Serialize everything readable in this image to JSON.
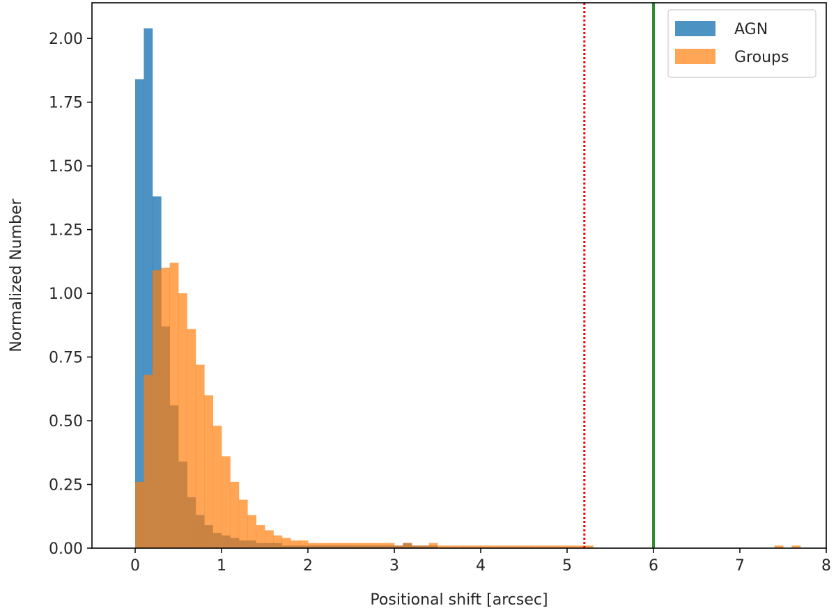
{
  "chart_data": {
    "type": "bar",
    "xlabel": "Positional shift [arcsec]",
    "ylabel": "Normalized Number",
    "xlim": [
      -0.5,
      8
    ],
    "ylim": [
      0,
      2.14
    ],
    "xticks": [
      0,
      1,
      2,
      3,
      4,
      5,
      6,
      7,
      8
    ],
    "xtick_labels": [
      "0",
      "1",
      "2",
      "3",
      "4",
      "5",
      "6",
      "7",
      "8"
    ],
    "yticks": [
      0,
      0.25,
      0.5,
      0.75,
      1.0,
      1.25,
      1.5,
      1.75,
      2.0
    ],
    "ytick_labels": [
      "0.00",
      "0.25",
      "0.50",
      "0.75",
      "1.00",
      "1.25",
      "1.50",
      "1.75",
      "2.00"
    ],
    "grid": false,
    "legend_position": "top-right",
    "series": [
      {
        "name": "AGN",
        "color": "#1f77b4",
        "opacity": 0.8,
        "bin_start": 0.0,
        "bin_width": 0.1,
        "values": [
          1.84,
          2.04,
          1.38,
          0.87,
          0.56,
          0.34,
          0.2,
          0.13,
          0.09,
          0.06,
          0.05,
          0.04,
          0.03,
          0.03,
          0.02,
          0.02,
          0.02,
          0.01,
          0.01,
          0.01,
          0.01,
          0.01,
          0.01,
          0.01,
          0.01,
          0.01,
          0.01,
          0.01,
          0.01,
          0.01,
          0.01,
          0.02,
          0.01,
          0.01,
          0.01
        ]
      },
      {
        "name": "Groups",
        "color": "#ff7f0e",
        "opacity": 0.7,
        "bin_start": 0.0,
        "bin_width": 0.1,
        "values": [
          0.26,
          0.68,
          1.09,
          1.1,
          1.12,
          1.0,
          0.86,
          0.72,
          0.6,
          0.48,
          0.36,
          0.26,
          0.19,
          0.13,
          0.09,
          0.07,
          0.05,
          0.04,
          0.03,
          0.03,
          0.02,
          0.02,
          0.02,
          0.02,
          0.02,
          0.02,
          0.02,
          0.02,
          0.02,
          0.02,
          0.01,
          0.02,
          0.01,
          0.01,
          0.02,
          0.01,
          0.01,
          0.01,
          0.01,
          0.01,
          0.01,
          0.01,
          0.01,
          0.01,
          0.01,
          0.01,
          0.01,
          0.01,
          0.01,
          0.01,
          0.01,
          0.01,
          0.01,
          0.0,
          0.0,
          0.0,
          0.0,
          0.0,
          0.0,
          0.0,
          0.0,
          0.0,
          0.0,
          0.0,
          0.0,
          0.0,
          0.0,
          0.0,
          0.0,
          0.0,
          0.0,
          0.0,
          0.0,
          0.0,
          0.01,
          0.0,
          0.01,
          0.0
        ]
      }
    ],
    "vlines": [
      {
        "x": 5.2,
        "color": "#ff0000",
        "style": "dotted"
      },
      {
        "x": 6.0,
        "color": "#2e8b2e",
        "style": "solid"
      }
    ]
  }
}
